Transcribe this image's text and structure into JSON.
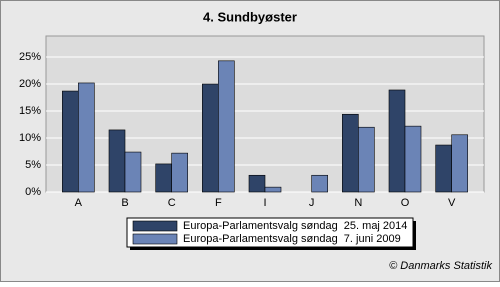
{
  "chart_data": {
    "type": "bar",
    "title": "4. Sundbyøster",
    "categories": [
      "A",
      "B",
      "C",
      "F",
      "I",
      "J",
      "N",
      "O",
      "V"
    ],
    "series": [
      {
        "name": "Europa-Parlamentsvalg søndag  25. maj 2014",
        "color": "#2f4468",
        "values": [
          18.7,
          11.5,
          5.2,
          20.0,
          3.1,
          0,
          14.4,
          18.9,
          8.7
        ]
      },
      {
        "name": "Europa-Parlamentsvalg søndag  7. juni 2009",
        "color": "#6b84b6",
        "values": [
          20.2,
          7.4,
          7.2,
          24.3,
          0.9,
          3.1,
          12.0,
          12.2,
          10.6
        ]
      }
    ],
    "ylim": [
      0,
      28.9
    ],
    "yticks": [
      {
        "value": 0,
        "label": "0%"
      },
      {
        "value": 5,
        "label": "5%"
      },
      {
        "value": 10,
        "label": "10%"
      },
      {
        "value": 15,
        "label": "15%"
      },
      {
        "value": 20,
        "label": "20%"
      },
      {
        "value": 25,
        "label": "25%"
      }
    ],
    "grid": true,
    "copyright": "© Danmarks Statistik"
  }
}
